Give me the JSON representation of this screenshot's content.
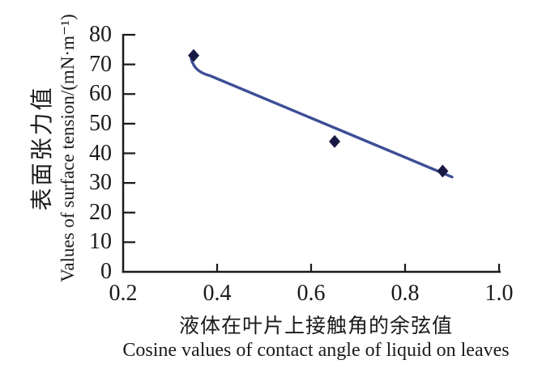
{
  "figure": {
    "background": "#ffffff"
  },
  "chart_data": {
    "type": "scatter",
    "title": "",
    "xlabel_zh": "液体在叶片上接触角的余弦值",
    "xlabel_en": "Cosine values of contact angle of liquid on leaves",
    "ylabel_zh": "表面张力值",
    "ylabel_en": "Values of surface tension/(mN·m⁻¹)",
    "xlim": [
      0.2,
      1.0
    ],
    "ylim": [
      0,
      80
    ],
    "xticks": [
      0.2,
      0.4,
      0.6,
      0.8,
      1.0
    ],
    "xtick_labels": [
      "0.2",
      "0.4",
      "0.6",
      "0.8",
      "1.0"
    ],
    "yticks": [
      0,
      10,
      20,
      30,
      40,
      50,
      60,
      70,
      80
    ],
    "ytick_labels": [
      "0",
      "10",
      "20",
      "30",
      "40",
      "50",
      "60",
      "70",
      "80"
    ],
    "grid": false,
    "legend": null,
    "series": [
      {
        "name": "surface-tension-vs-cosine",
        "marker": "diamond",
        "points": [
          [
            0.35,
            73
          ],
          [
            0.65,
            44
          ],
          [
            0.88,
            34
          ]
        ]
      }
    ],
    "trend_line": {
      "points": [
        [
          0.345,
          71.8
        ],
        [
          0.9,
          32.0
        ]
      ]
    },
    "colors": {
      "marker": "#191945",
      "trend_line": "#3e4e96",
      "axis": "#1a1a1a",
      "text": "#1a1a1a"
    }
  }
}
